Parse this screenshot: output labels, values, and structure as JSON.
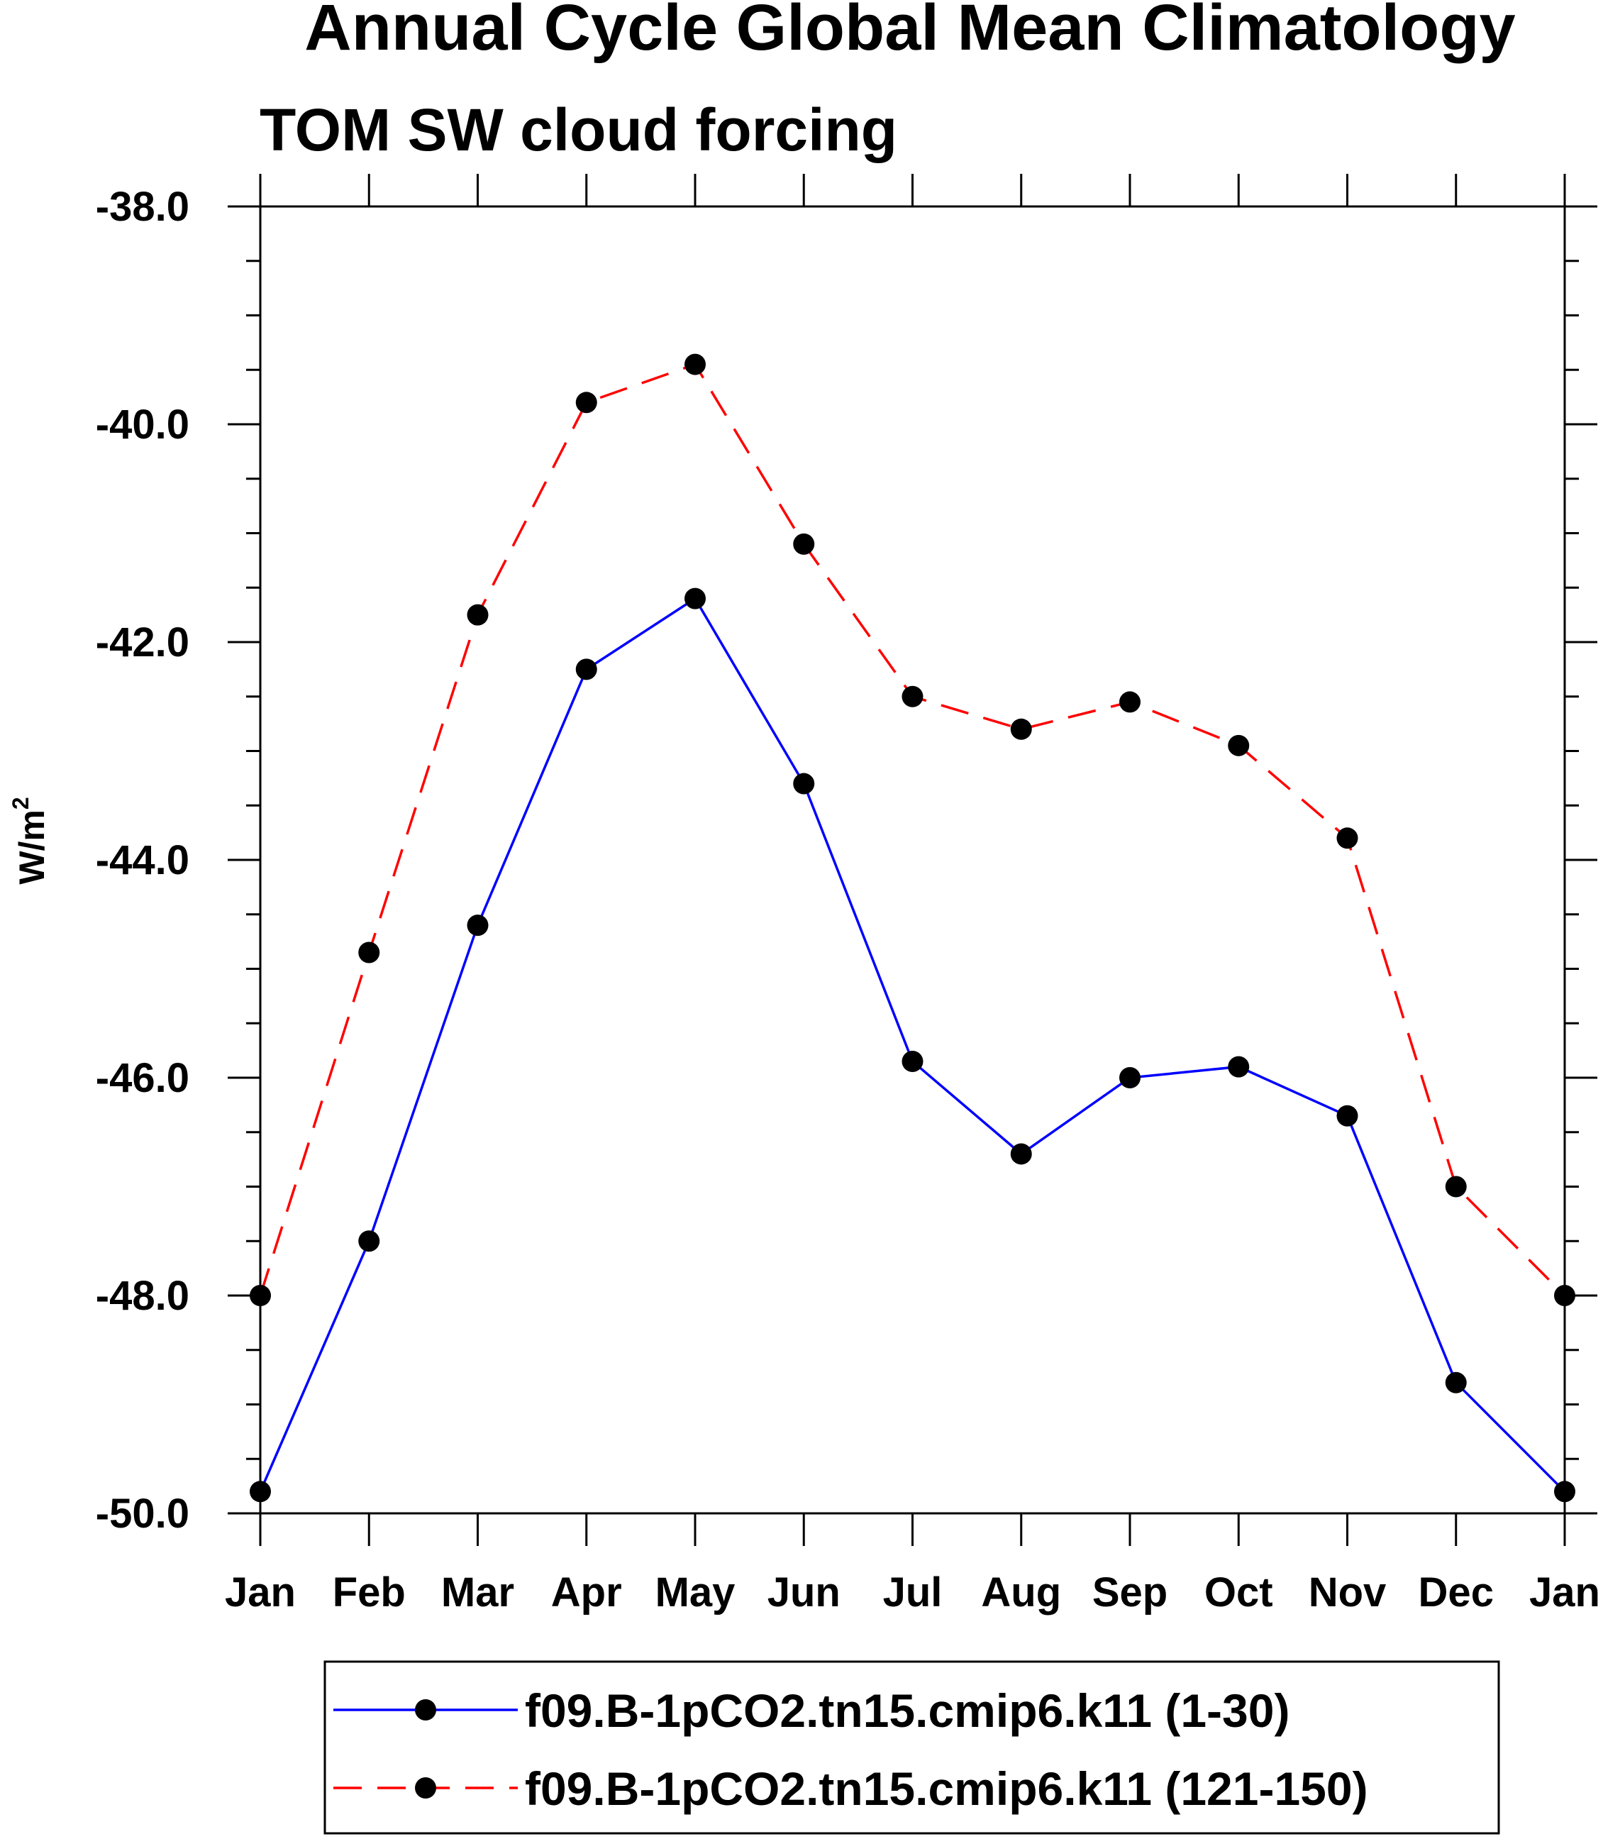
{
  "chart_data": {
    "type": "line",
    "title": "Annual Cycle Global Mean Climatology",
    "subtitle": "TOM SW cloud forcing",
    "ylabel": "W/m",
    "ylabel_superscript": "2",
    "xlabel": "",
    "categories": [
      "Jan",
      "Feb",
      "Mar",
      "Apr",
      "May",
      "Jun",
      "Jul",
      "Aug",
      "Sep",
      "Oct",
      "Nov",
      "Dec",
      "Jan"
    ],
    "ylim": [
      -50.0,
      -38.0
    ],
    "yticks": [
      "-38.0",
      "-40.0",
      "-42.0",
      "-44.0",
      "-46.0",
      "-48.0",
      "-50.0"
    ],
    "ytick_values": [
      -38,
      -40,
      -42,
      -44,
      -46,
      -48,
      -50
    ],
    "y_minor_step": 0.5,
    "legend_position": "bottom",
    "series": [
      {
        "name": "f09.B-1pCO2.tn15.cmip6.k11 (1-30)",
        "color": "#0000ff",
        "dash": "solid",
        "values": [
          -49.8,
          -47.5,
          -44.6,
          -42.25,
          -41.6,
          -43.3,
          -45.85,
          -46.7,
          -46.0,
          -45.9,
          -46.35,
          -48.8,
          -49.8
        ]
      },
      {
        "name": "f09.B-1pCO2.tn15.cmip6.k11 (121-150)",
        "color": "#ff0000",
        "dash": "dashed",
        "values": [
          -48.0,
          -44.85,
          -41.75,
          -39.8,
          -39.45,
          -41.1,
          -42.5,
          -42.8,
          -42.55,
          -42.95,
          -43.8,
          -47.0,
          -48.0
        ]
      }
    ]
  }
}
